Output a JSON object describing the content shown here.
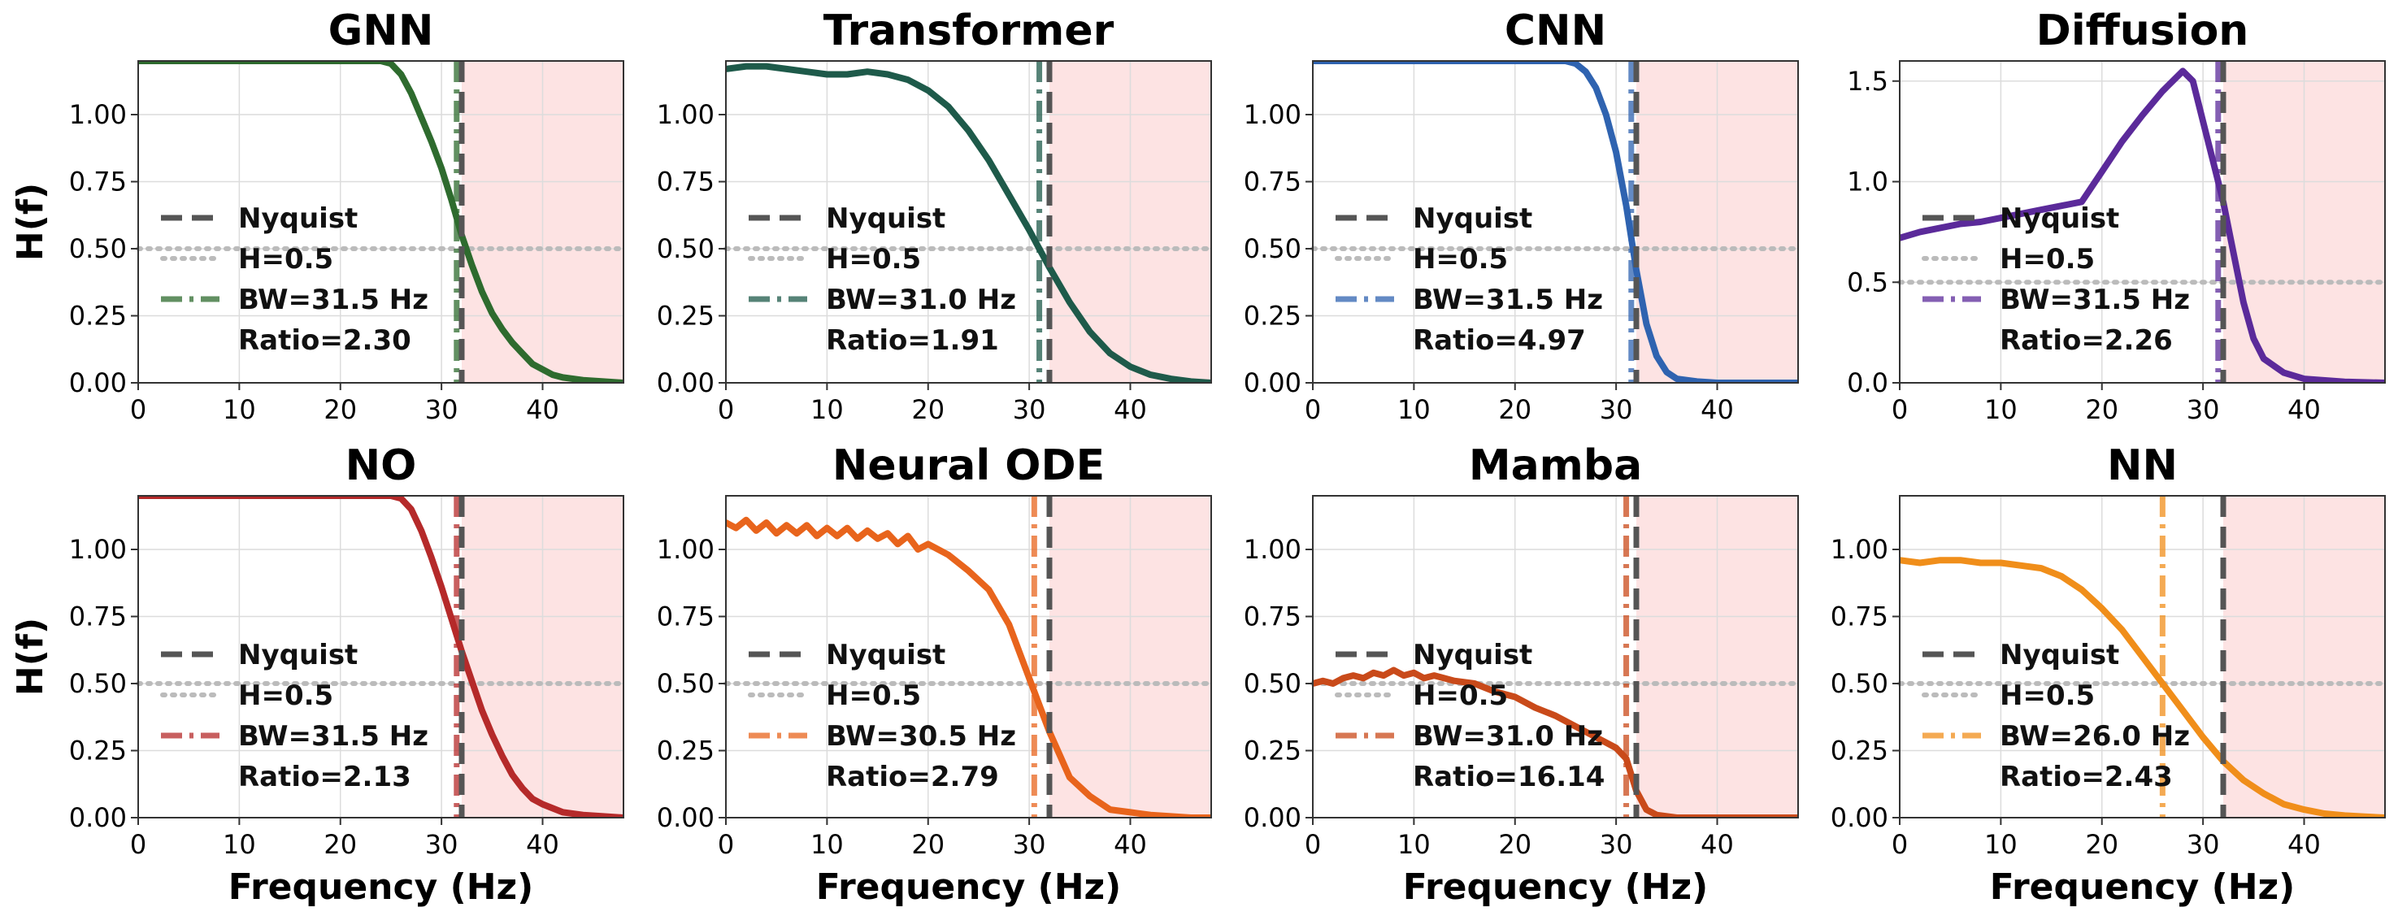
{
  "figure": {
    "ylabel": "H(f)",
    "xlabel": "Frequency (Hz)",
    "legend_labels": {
      "nyquist": "Nyquist",
      "half": "H=0.5"
    },
    "colors": {
      "nyquist": "#555555",
      "half": "#bbbbbb",
      "stopband": "#fde3e3"
    }
  },
  "chart_data": [
    {
      "type": "line",
      "title": "GNN",
      "color": "#2e6b2e",
      "xlim": [
        0,
        48
      ],
      "ylim": [
        0,
        1.2
      ],
      "xticks": [
        0,
        10,
        20,
        30,
        40
      ],
      "yticks": [
        0.0,
        0.25,
        0.5,
        0.75,
        1.0
      ],
      "nyquist": 32,
      "bandwidth": 31.5,
      "bw_label": "BW=31.5 Hz",
      "ratio_label": "Ratio=2.30",
      "x": [
        0,
        5,
        10,
        15,
        20,
        24,
        25,
        26,
        27,
        28,
        29,
        30,
        31,
        32,
        33,
        34,
        35,
        36,
        37,
        38,
        39,
        40,
        41,
        42,
        44,
        46,
        48
      ],
      "y": [
        1.2,
        1.2,
        1.2,
        1.2,
        1.2,
        1.2,
        1.19,
        1.15,
        1.08,
        0.99,
        0.9,
        0.8,
        0.68,
        0.55,
        0.44,
        0.34,
        0.26,
        0.2,
        0.15,
        0.11,
        0.07,
        0.05,
        0.03,
        0.02,
        0.01,
        0.005,
        0.0
      ]
    },
    {
      "type": "line",
      "title": "Transformer",
      "color": "#1e5a4a",
      "xlim": [
        0,
        48
      ],
      "ylim": [
        0,
        1.2
      ],
      "xticks": [
        0,
        10,
        20,
        30,
        40
      ],
      "yticks": [
        0.0,
        0.25,
        0.5,
        0.75,
        1.0
      ],
      "nyquist": 32,
      "bandwidth": 31.0,
      "bw_label": "BW=31.0 Hz",
      "ratio_label": "Ratio=1.91",
      "x": [
        0,
        2,
        4,
        6,
        8,
        10,
        12,
        14,
        16,
        18,
        20,
        22,
        24,
        26,
        28,
        30,
        32,
        34,
        36,
        38,
        40,
        42,
        44,
        46,
        48
      ],
      "y": [
        1.17,
        1.18,
        1.18,
        1.17,
        1.16,
        1.15,
        1.15,
        1.16,
        1.15,
        1.13,
        1.09,
        1.03,
        0.94,
        0.83,
        0.7,
        0.57,
        0.43,
        0.3,
        0.19,
        0.11,
        0.06,
        0.03,
        0.015,
        0.005,
        0.0
      ]
    },
    {
      "type": "line",
      "title": "CNN",
      "color": "#2f63b0",
      "xlim": [
        0,
        48
      ],
      "ylim": [
        0,
        1.2
      ],
      "xticks": [
        0,
        10,
        20,
        30,
        40
      ],
      "yticks": [
        0.0,
        0.25,
        0.5,
        0.75,
        1.0
      ],
      "nyquist": 32,
      "bandwidth": 31.5,
      "bw_label": "BW=31.5 Hz",
      "ratio_label": "Ratio=4.97",
      "x": [
        0,
        10,
        20,
        25,
        26,
        27,
        28,
        29,
        30,
        31,
        32,
        33,
        34,
        35,
        36,
        38,
        40,
        44,
        48
      ],
      "y": [
        1.2,
        1.2,
        1.2,
        1.2,
        1.19,
        1.16,
        1.1,
        1.0,
        0.86,
        0.66,
        0.42,
        0.22,
        0.1,
        0.04,
        0.015,
        0.005,
        0.0,
        0.0,
        0.0
      ]
    },
    {
      "type": "line",
      "title": "Diffusion",
      "color": "#5b2a9a",
      "xlim": [
        0,
        48
      ],
      "ylim": [
        0,
        1.6
      ],
      "xticks": [
        0,
        10,
        20,
        30,
        40
      ],
      "yticks": [
        0.0,
        0.5,
        1.0,
        1.5
      ],
      "nyquist": 32,
      "bandwidth": 31.5,
      "bw_label": "BW=31.5 Hz",
      "ratio_label": "Ratio=2.26",
      "x": [
        0,
        2,
        4,
        6,
        8,
        10,
        12,
        14,
        16,
        18,
        20,
        22,
        24,
        26,
        28,
        29,
        30,
        31,
        32,
        33,
        34,
        35,
        36,
        38,
        40,
        44,
        48
      ],
      "y": [
        0.72,
        0.75,
        0.77,
        0.79,
        0.8,
        0.82,
        0.84,
        0.86,
        0.88,
        0.9,
        1.05,
        1.2,
        1.33,
        1.45,
        1.55,
        1.5,
        1.3,
        1.1,
        0.9,
        0.65,
        0.4,
        0.22,
        0.12,
        0.05,
        0.02,
        0.005,
        0.0
      ]
    },
    {
      "type": "line",
      "title": "NO",
      "color": "#b52a2a",
      "xlim": [
        0,
        48
      ],
      "ylim": [
        0,
        1.2
      ],
      "xticks": [
        0,
        10,
        20,
        30,
        40
      ],
      "yticks": [
        0.0,
        0.25,
        0.5,
        0.75,
        1.0
      ],
      "nyquist": 32,
      "bandwidth": 31.5,
      "bw_label": "BW=31.5 Hz",
      "ratio_label": "Ratio=2.13",
      "x": [
        0,
        5,
        10,
        15,
        20,
        25,
        26,
        27,
        28,
        29,
        30,
        31,
        32,
        33,
        34,
        35,
        36,
        37,
        38,
        39,
        40,
        42,
        44,
        46,
        48
      ],
      "y": [
        1.2,
        1.2,
        1.2,
        1.2,
        1.2,
        1.2,
        1.19,
        1.15,
        1.07,
        0.97,
        0.86,
        0.74,
        0.62,
        0.51,
        0.4,
        0.31,
        0.23,
        0.16,
        0.11,
        0.07,
        0.05,
        0.02,
        0.01,
        0.005,
        0.0
      ]
    },
    {
      "type": "line",
      "title": "Neural ODE",
      "color": "#e8641c",
      "xlim": [
        0,
        48
      ],
      "ylim": [
        0,
        1.2
      ],
      "xticks": [
        0,
        10,
        20,
        30,
        40
      ],
      "yticks": [
        0.0,
        0.25,
        0.5,
        0.75,
        1.0
      ],
      "nyquist": 32,
      "bandwidth": 30.5,
      "bw_label": "BW=30.5 Hz",
      "ratio_label": "Ratio=2.79",
      "x": [
        0,
        1,
        2,
        3,
        4,
        5,
        6,
        7,
        8,
        9,
        10,
        11,
        12,
        13,
        14,
        15,
        16,
        17,
        18,
        19,
        20,
        22,
        24,
        26,
        28,
        30,
        32,
        34,
        36,
        38,
        40,
        42,
        44,
        46,
        48
      ],
      "y": [
        1.1,
        1.08,
        1.11,
        1.07,
        1.1,
        1.06,
        1.09,
        1.06,
        1.09,
        1.05,
        1.08,
        1.05,
        1.08,
        1.04,
        1.07,
        1.04,
        1.06,
        1.02,
        1.05,
        1.0,
        1.02,
        0.98,
        0.92,
        0.85,
        0.72,
        0.52,
        0.32,
        0.15,
        0.08,
        0.03,
        0.02,
        0.01,
        0.005,
        0.0,
        0.0
      ]
    },
    {
      "type": "line",
      "title": "Mamba",
      "color": "#c94a1a",
      "xlim": [
        0,
        48
      ],
      "ylim": [
        0,
        1.2
      ],
      "xticks": [
        0,
        10,
        20,
        30,
        40
      ],
      "yticks": [
        0.0,
        0.25,
        0.5,
        0.75,
        1.0
      ],
      "nyquist": 32,
      "bandwidth": 31.0,
      "bw_label": "BW=31.0 Hz",
      "ratio_label": "Ratio=16.14",
      "x": [
        0,
        1,
        2,
        3,
        4,
        5,
        6,
        7,
        8,
        9,
        10,
        11,
        12,
        14,
        16,
        18,
        20,
        22,
        24,
        26,
        28,
        30,
        31,
        32,
        33,
        34,
        36,
        40,
        44,
        48
      ],
      "y": [
        0.5,
        0.51,
        0.5,
        0.52,
        0.53,
        0.52,
        0.54,
        0.53,
        0.55,
        0.53,
        0.54,
        0.52,
        0.53,
        0.51,
        0.5,
        0.47,
        0.45,
        0.41,
        0.38,
        0.34,
        0.3,
        0.26,
        0.22,
        0.1,
        0.03,
        0.01,
        0.0,
        0.0,
        0.0,
        0.0
      ]
    },
    {
      "type": "line",
      "title": "NN",
      "color": "#f08e1a",
      "xlim": [
        0,
        48
      ],
      "ylim": [
        0,
        1.2
      ],
      "xticks": [
        0,
        10,
        20,
        30,
        40
      ],
      "yticks": [
        0.0,
        0.25,
        0.5,
        0.75,
        1.0
      ],
      "nyquist": 32,
      "bandwidth": 26.0,
      "bw_label": "BW=26.0 Hz",
      "ratio_label": "Ratio=2.43",
      "x": [
        0,
        2,
        4,
        6,
        8,
        10,
        12,
        14,
        16,
        18,
        20,
        22,
        24,
        26,
        28,
        30,
        32,
        34,
        36,
        38,
        40,
        42,
        44,
        46,
        48
      ],
      "y": [
        0.96,
        0.95,
        0.96,
        0.96,
        0.95,
        0.95,
        0.94,
        0.93,
        0.9,
        0.85,
        0.78,
        0.7,
        0.6,
        0.5,
        0.4,
        0.3,
        0.21,
        0.14,
        0.09,
        0.05,
        0.03,
        0.015,
        0.008,
        0.004,
        0.0
      ]
    }
  ]
}
